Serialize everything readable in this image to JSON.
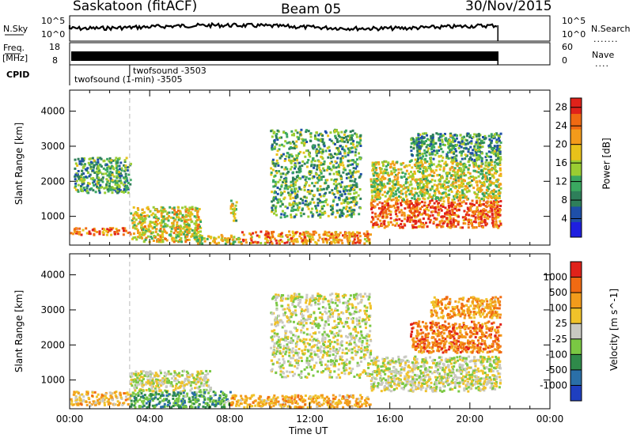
{
  "header": {
    "station": "Saskatoon (fitACF)",
    "beam": "Beam 05",
    "date": "30/Nov/2015"
  },
  "top_panels": {
    "nsky_label": "N.Sky",
    "nsky_ticks": [
      "10^5",
      "10^0"
    ],
    "nsearch_label": "N.Search",
    "nsearch_ticks": [
      "10^5",
      "10^0"
    ],
    "freq_label": "Freq.",
    "freq_unit": "[MHz]",
    "freq_ticks": [
      "18",
      "8"
    ],
    "nave_label": "Nave",
    "nave_ticks": [
      "60",
      "0"
    ],
    "cpid_label": "CPID",
    "cpid_entries": [
      "twofsound -3503",
      "twofsound (1-min) -3505"
    ],
    "cpid_change_time_hours": 3.0
  },
  "chart_data": [
    {
      "type": "heatmap",
      "panel": "power",
      "ylabel": "Slant Range [km]",
      "xlabel": "",
      "x_ticks": [
        "00:00",
        "04:00",
        "08:00",
        "12:00",
        "16:00",
        "20:00",
        "00:00"
      ],
      "xlim_hours": [
        0,
        24
      ],
      "y_ticks": [
        1000,
        2000,
        3000,
        4000
      ],
      "ylim": [
        180,
        4600
      ],
      "colorbar": {
        "label": "Power [dB]",
        "ticks": [
          4,
          8,
          12,
          16,
          20,
          24,
          28
        ],
        "range": [
          0,
          30
        ],
        "colors": [
          "#1f1fe0",
          "#1e4fa8",
          "#2e7f5a",
          "#3aa860",
          "#9acd32",
          "#e8c21a",
          "#f39b1b",
          "#f06a12",
          "#e0221a"
        ]
      },
      "echo_regions": [
        {
          "t0": 0.0,
          "t1": 3.0,
          "r0": 500,
          "r1": 700,
          "level": 0.85
        },
        {
          "t0": 0.2,
          "t1": 3.0,
          "r0": 1700,
          "r1": 2700,
          "level": 0.35
        },
        {
          "t0": 3.0,
          "t1": 6.5,
          "r0": 300,
          "r1": 1300,
          "level": 0.6
        },
        {
          "t0": 6.0,
          "t1": 8.5,
          "r0": 250,
          "r1": 500,
          "level": 0.55
        },
        {
          "t0": 8.0,
          "t1": 8.3,
          "r0": 900,
          "r1": 1500,
          "level": 0.5
        },
        {
          "t0": 8.5,
          "t1": 15.0,
          "r0": 250,
          "r1": 600,
          "level": 0.75
        },
        {
          "t0": 10.0,
          "t1": 14.5,
          "r0": 1000,
          "r1": 3500,
          "level": 0.4
        },
        {
          "t0": 15.0,
          "t1": 21.5,
          "r0": 700,
          "r1": 1500,
          "level": 0.85
        },
        {
          "t0": 15.0,
          "t1": 21.5,
          "r0": 1500,
          "r1": 2600,
          "level": 0.55
        },
        {
          "t0": 17.0,
          "t1": 21.5,
          "r0": 2600,
          "r1": 3400,
          "level": 0.35
        }
      ]
    },
    {
      "type": "heatmap",
      "panel": "velocity",
      "ylabel": "Slant Range [km]",
      "xlabel": "Time UT",
      "x_ticks": [
        "00:00",
        "04:00",
        "08:00",
        "12:00",
        "16:00",
        "20:00",
        "00:00"
      ],
      "xlim_hours": [
        0,
        24
      ],
      "y_ticks": [
        1000,
        2000,
        3000,
        4000
      ],
      "ylim": [
        180,
        4600
      ],
      "colorbar": {
        "label": "Velocity [m s^-1]",
        "ticks": [
          1000,
          500,
          100,
          25,
          -25,
          -100,
          -500,
          -1000
        ],
        "colors": [
          "#1f3fc0",
          "#2a6fa8",
          "#2f8a4a",
          "#7ac843",
          "#c9c9c2",
          "#f0c22a",
          "#f39b1b",
          "#f06a12",
          "#e0221a"
        ]
      },
      "echo_regions": [
        {
          "t0": 0.0,
          "t1": 3.0,
          "r0": 300,
          "r1": 700,
          "level": -0.3
        },
        {
          "t0": 3.0,
          "t1": 7.0,
          "r0": 700,
          "r1": 1300,
          "level": 0.0
        },
        {
          "t0": 3.0,
          "t1": 8.0,
          "r0": 250,
          "r1": 700,
          "level": 0.4
        },
        {
          "t0": 8.0,
          "t1": 15.0,
          "r0": 250,
          "r1": 600,
          "level": -0.35
        },
        {
          "t0": 10.0,
          "t1": 15.0,
          "r0": 1100,
          "r1": 3500,
          "level": 0.0
        },
        {
          "t0": 15.0,
          "t1": 21.5,
          "r0": 700,
          "r1": 1700,
          "level": 0.0
        },
        {
          "t0": 17.0,
          "t1": 21.5,
          "r0": 1800,
          "r1": 2700,
          "level": -0.6
        },
        {
          "t0": 18.0,
          "t1": 21.5,
          "r0": 2800,
          "r1": 3400,
          "level": -0.4
        }
      ]
    }
  ]
}
